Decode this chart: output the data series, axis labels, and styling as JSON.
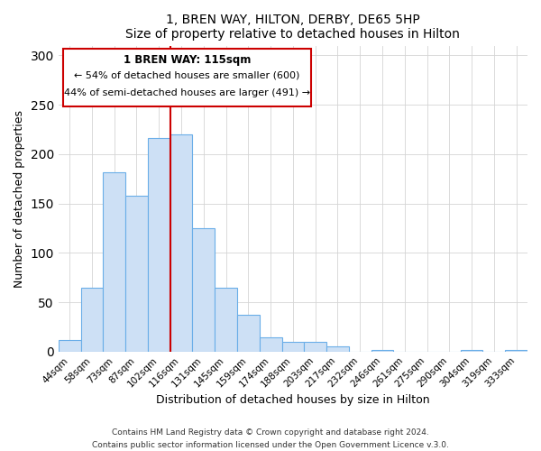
{
  "title": "1, BREN WAY, HILTON, DERBY, DE65 5HP",
  "subtitle": "Size of property relative to detached houses in Hilton",
  "xlabel": "Distribution of detached houses by size in Hilton",
  "ylabel": "Number of detached properties",
  "bar_labels": [
    "44sqm",
    "58sqm",
    "73sqm",
    "87sqm",
    "102sqm",
    "116sqm",
    "131sqm",
    "145sqm",
    "159sqm",
    "174sqm",
    "188sqm",
    "203sqm",
    "217sqm",
    "232sqm",
    "246sqm",
    "261sqm",
    "275sqm",
    "290sqm",
    "304sqm",
    "319sqm",
    "333sqm"
  ],
  "bar_heights": [
    12,
    65,
    182,
    158,
    216,
    220,
    125,
    65,
    37,
    14,
    10,
    10,
    5,
    0,
    2,
    0,
    0,
    0,
    2,
    0,
    2
  ],
  "bar_color": "#cde0f5",
  "bar_edge_color": "#6aaee8",
  "vline_x_idx": 5,
  "vline_color": "#cc0000",
  "annotation_title": "1 BREN WAY: 115sqm",
  "annotation_line1": "← 54% of detached houses are smaller (600)",
  "annotation_line2": "44% of semi-detached houses are larger (491) →",
  "annotation_box_edge": "#cc0000",
  "ylim": [
    0,
    310
  ],
  "yticks": [
    0,
    50,
    100,
    150,
    200,
    250,
    300
  ],
  "footer1": "Contains HM Land Registry data © Crown copyright and database right 2024.",
  "footer2": "Contains public sector information licensed under the Open Government Licence v.3.0."
}
